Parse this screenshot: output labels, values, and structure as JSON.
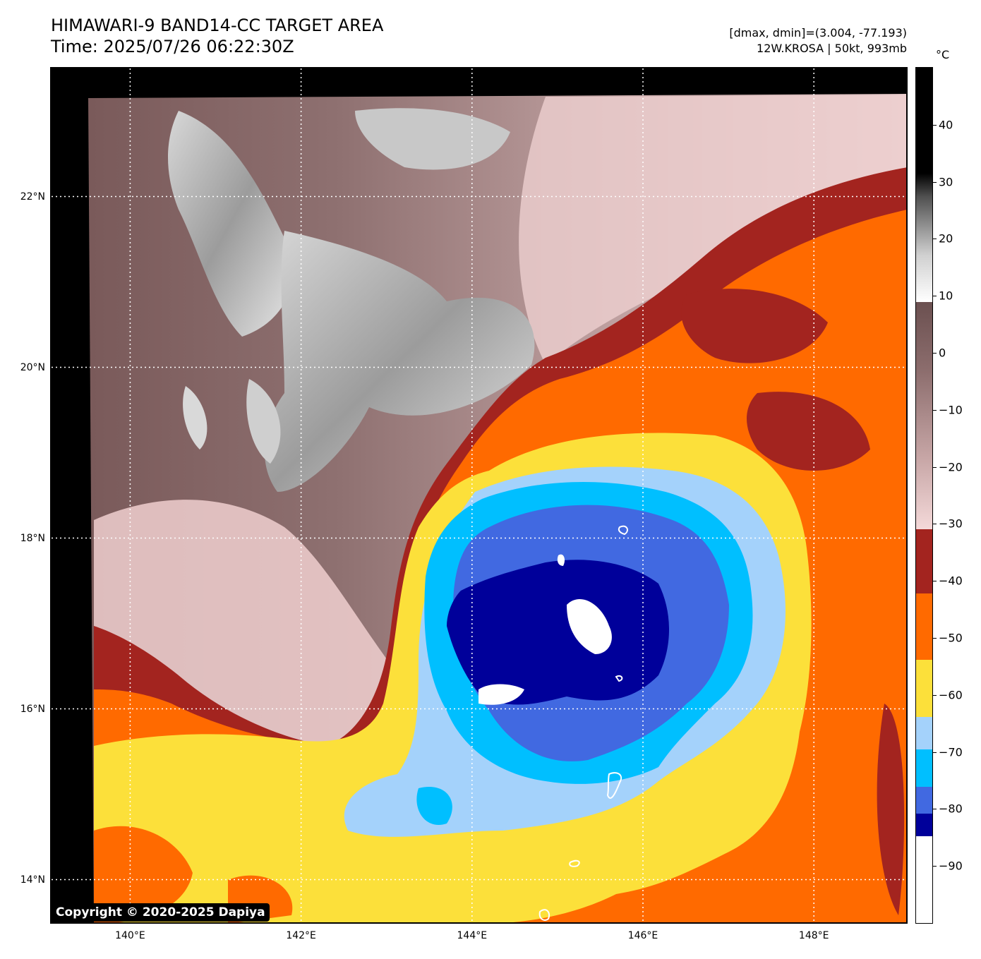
{
  "title_line1": "HIMAWARI-9 BAND14-CC TARGET AREA",
  "title_line2": "Time: 2025/07/26 06:22:30Z",
  "info_line1": "[dmax, dmin]=(3.004, -77.193)",
  "info_line2": "12W.KROSA | 50kt, 993mb",
  "copyright": "Copyright © 2020-2025 Dapiya",
  "map": {
    "lat_labels": [
      {
        "text": "22°N",
        "lat": 22
      },
      {
        "text": "20°N",
        "lat": 20
      },
      {
        "text": "18°N",
        "lat": 18
      },
      {
        "text": "16°N",
        "lat": 16
      },
      {
        "text": "14°N",
        "lat": 14
      }
    ],
    "lon_labels": [
      {
        "text": "140°E",
        "lon": 140
      },
      {
        "text": "142°E",
        "lon": 142
      },
      {
        "text": "144°E",
        "lon": 144
      },
      {
        "text": "146°E",
        "lon": 146
      },
      {
        "text": "148°E",
        "lon": 148
      }
    ],
    "extent": {
      "lon_min": 139.08,
      "lon_max": 149.08,
      "lat_min": 13.5,
      "lat_max": 23.5
    }
  },
  "colorbar": {
    "unit": "°C",
    "range": [
      -100,
      50
    ],
    "ticks": [
      {
        "text": "40",
        "value": 40
      },
      {
        "text": "30",
        "value": 30
      },
      {
        "text": "20",
        "value": 20
      },
      {
        "text": "10",
        "value": 10
      },
      {
        "text": "0",
        "value": 0
      },
      {
        "text": "−10",
        "value": -10
      },
      {
        "text": "−20",
        "value": -20
      },
      {
        "text": "−30",
        "value": -30
      },
      {
        "text": "−40",
        "value": -40
      },
      {
        "text": "−50",
        "value": -50
      },
      {
        "text": "−60",
        "value": -60
      },
      {
        "text": "−70",
        "value": -70
      },
      {
        "text": "−80",
        "value": -80
      },
      {
        "text": "−90",
        "value": -90
      }
    ],
    "colors": {
      "black": "#000000",
      "white": "#ffffff",
      "brown_gray": "#6b5050",
      "pink": "#f4d9d9",
      "dark_red": "#a3241f",
      "orange": "#ff6a00",
      "yellow": "#fce03a",
      "light_blue": "#a4d2fb",
      "cyan": "#00bfff",
      "royal_blue": "#4169e1",
      "navy": "#00009a"
    }
  }
}
